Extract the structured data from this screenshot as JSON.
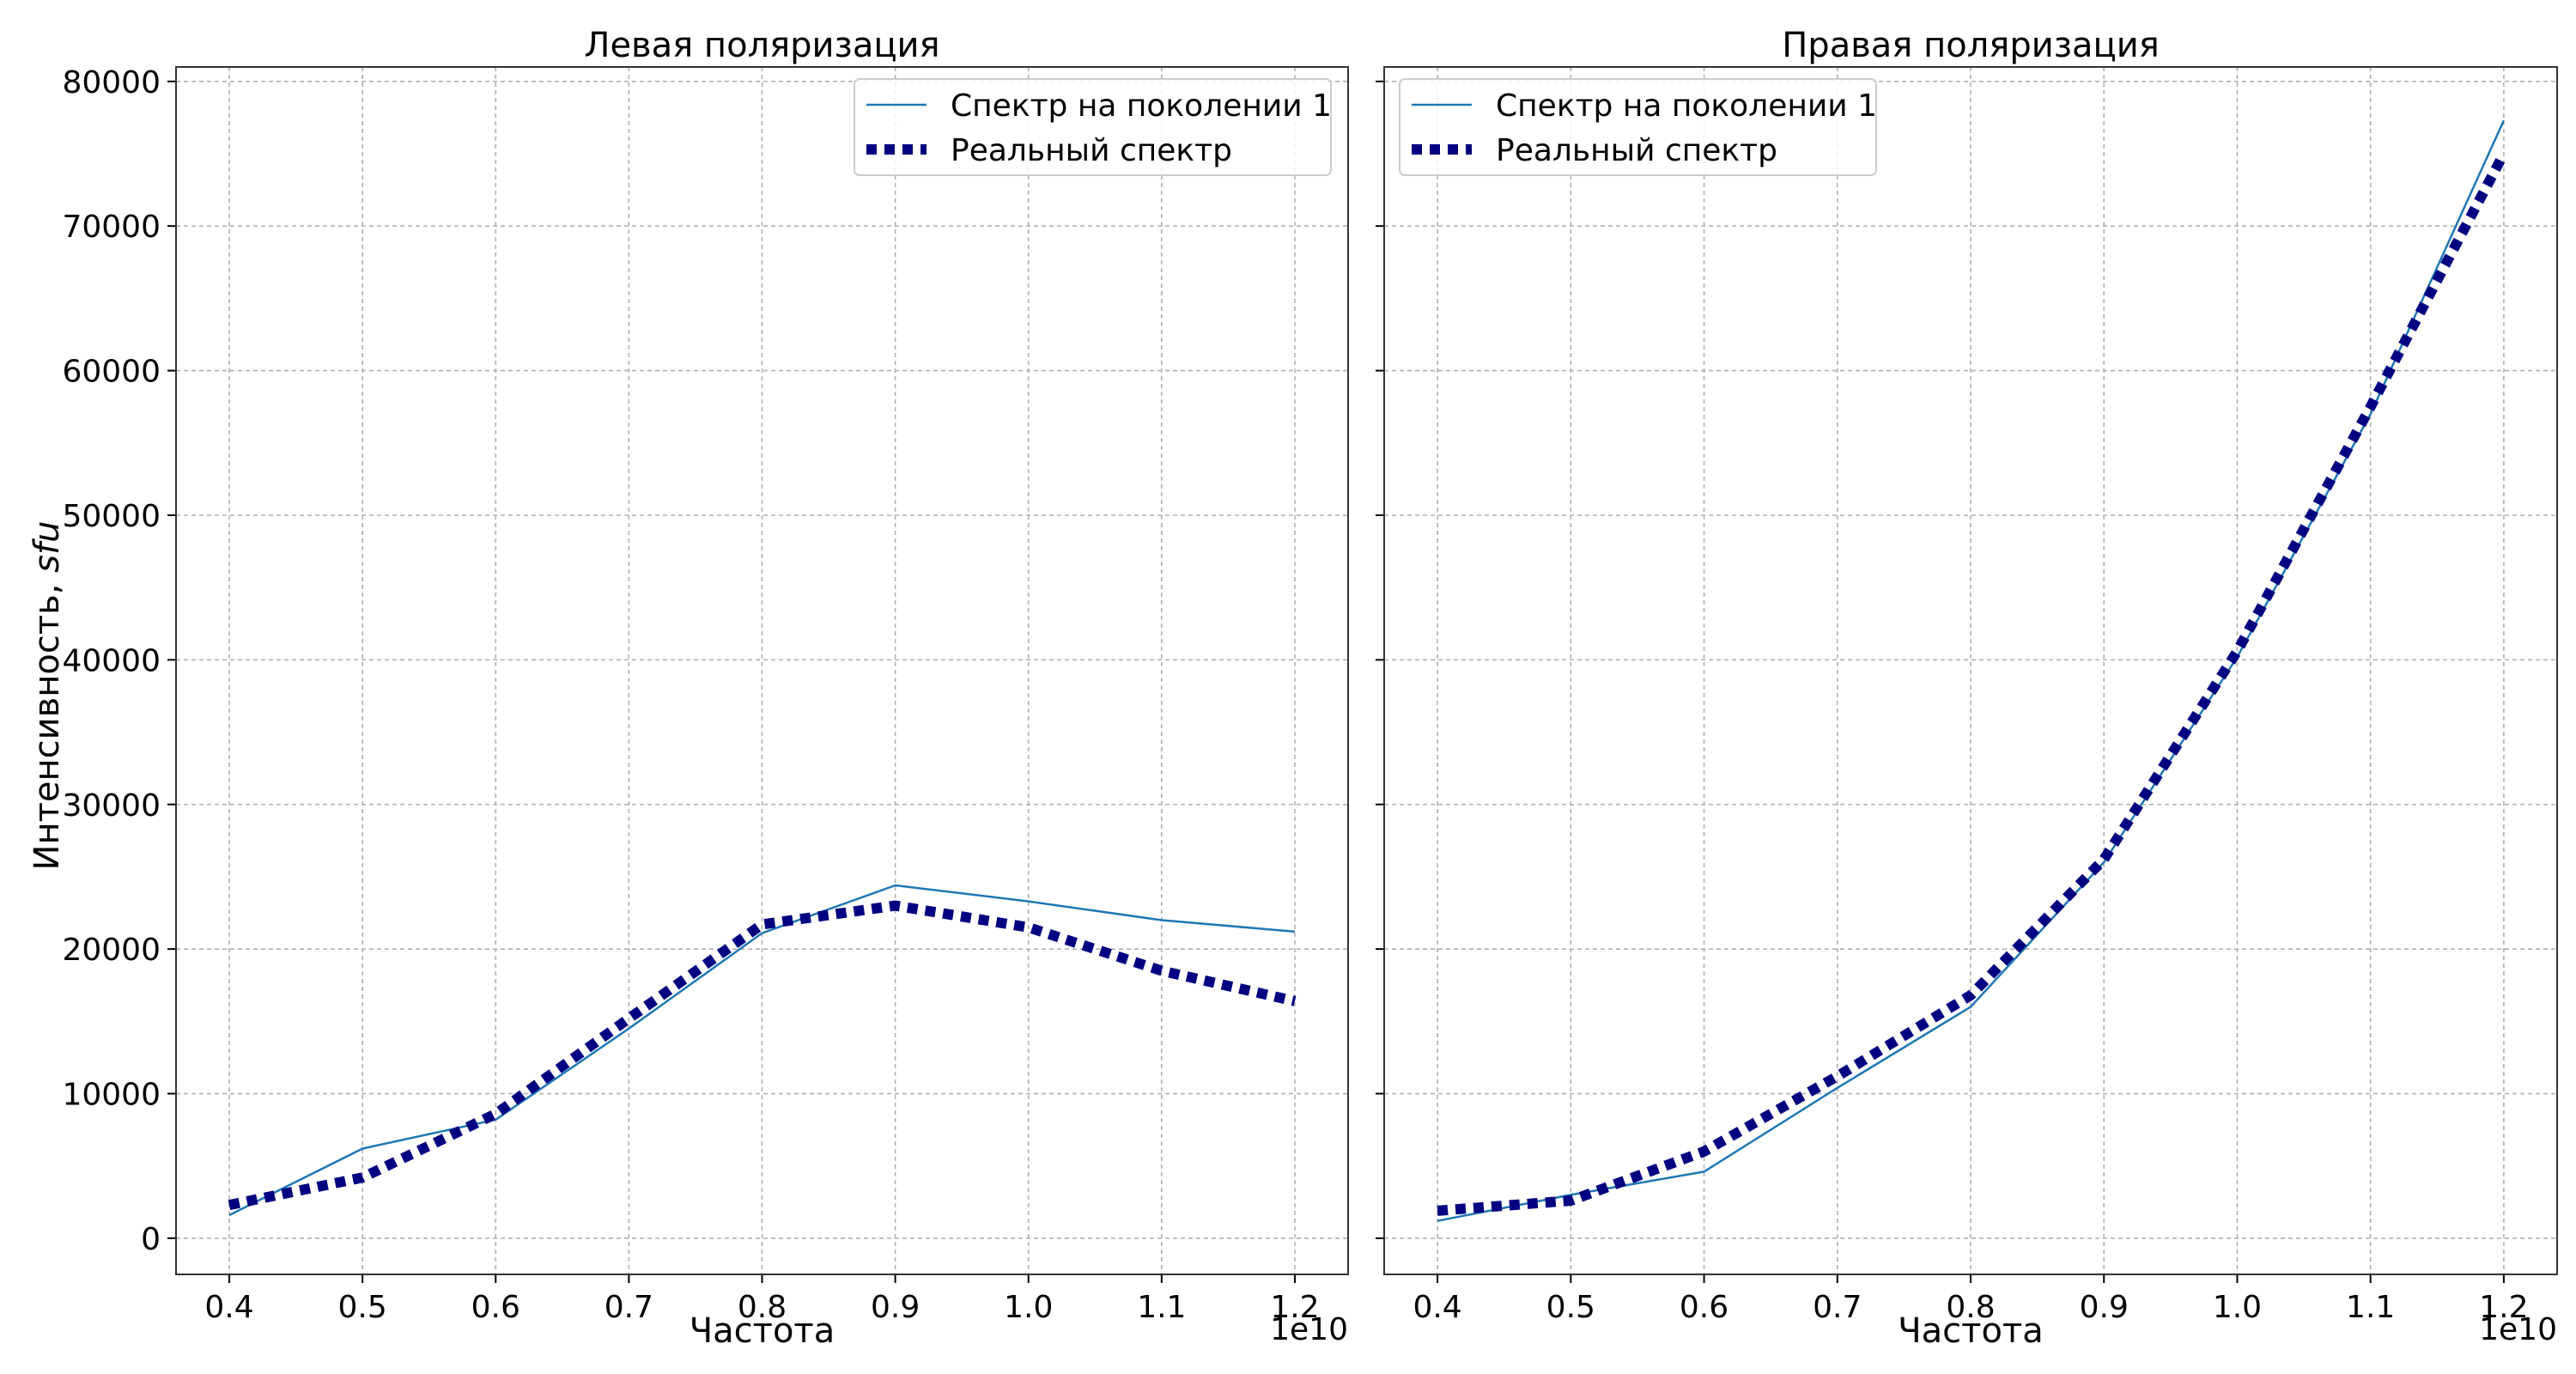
{
  "chart_data": [
    {
      "type": "line",
      "title": "Левая поляризация",
      "xlabel": "Частота",
      "ylabel": "Интенсивность, ",
      "ylabel_italic": "sfu",
      "x_exponent_label": "1e10",
      "x": [
        0.4,
        0.5,
        0.6,
        0.7,
        0.8,
        0.9,
        1.0,
        1.1,
        1.2
      ],
      "xticks": [
        "0.4",
        "0.5",
        "0.6",
        "0.7",
        "0.8",
        "0.9",
        "1.0",
        "1.1",
        "1.2"
      ],
      "xlim": [
        0.36,
        1.24
      ],
      "yticks": [
        "0",
        "10000",
        "20000",
        "30000",
        "40000",
        "50000",
        "60000",
        "70000",
        "80000"
      ],
      "ylim": [
        -2500,
        81000
      ],
      "grid": true,
      "legend_position": "top-right",
      "series": [
        {
          "name": "Спектр на поколении 1",
          "style": "solid",
          "color": "#1f77b4",
          "values": [
            1600,
            6200,
            8200,
            14500,
            21100,
            24400,
            23300,
            22000,
            21200
          ]
        },
        {
          "name": "Реальный спектр",
          "style": "dotted",
          "color": "#000080",
          "values": [
            2300,
            4200,
            8600,
            15200,
            21700,
            23000,
            21500,
            18500,
            16400
          ]
        }
      ]
    },
    {
      "type": "line",
      "title": "Правая поляризация",
      "xlabel": "Частота",
      "x_exponent_label": "1e10",
      "x": [
        0.4,
        0.5,
        0.6,
        0.7,
        0.8,
        0.9,
        1.0,
        1.1,
        1.2
      ],
      "xticks": [
        "0.4",
        "0.5",
        "0.6",
        "0.7",
        "0.8",
        "0.9",
        "1.0",
        "1.1",
        "1.2"
      ],
      "xlim": [
        0.36,
        1.24
      ],
      "ylim": [
        -2500,
        81000
      ],
      "grid": true,
      "legend_position": "top-left",
      "series": [
        {
          "name": "Спектр на поколении 1",
          "style": "solid",
          "color": "#1f77b4",
          "values": [
            1200,
            3000,
            4600,
            10400,
            16000,
            26000,
            40200,
            57000,
            77300
          ]
        },
        {
          "name": "Реальный спектр",
          "style": "dotted",
          "color": "#000080",
          "values": [
            1900,
            2600,
            6000,
            11200,
            16800,
            26200,
            40600,
            57500,
            75000
          ]
        }
      ]
    }
  ]
}
